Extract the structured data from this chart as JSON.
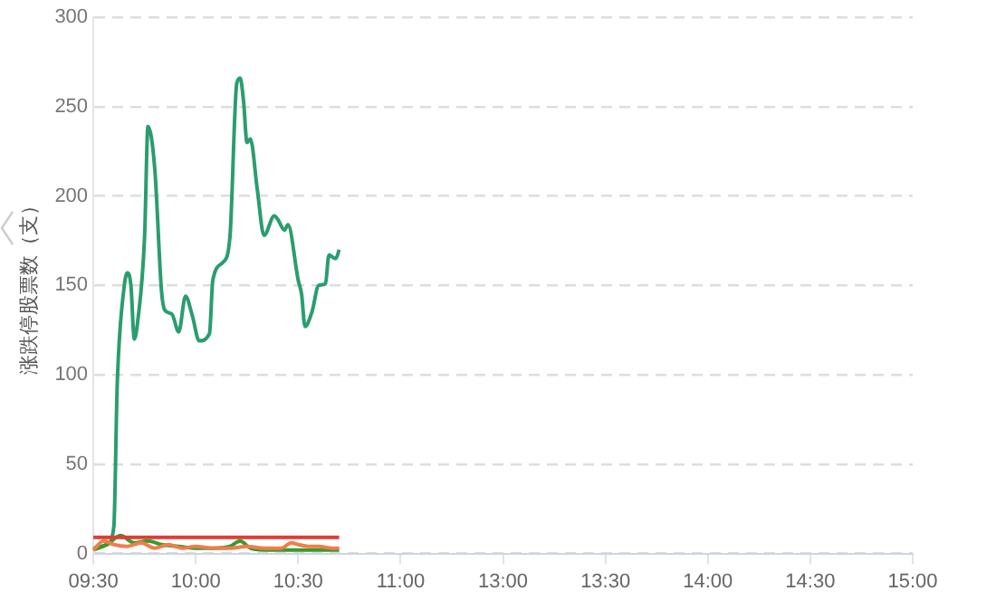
{
  "chart_data": {
    "type": "line",
    "ylabel": "涨跌停股票数（支）",
    "categories": [
      "09:30",
      null,
      null,
      null,
      null,
      null,
      null,
      null,
      null,
      null,
      null,
      null,
      null,
      null,
      null,
      null,
      null,
      null,
      null,
      null,
      null,
      null,
      null,
      null,
      null,
      null,
      null,
      null,
      null,
      null,
      "10:00",
      null,
      null,
      null,
      null,
      null,
      null,
      null,
      null,
      null,
      null,
      null,
      null,
      null,
      null,
      null,
      null,
      null,
      null,
      null,
      null,
      null,
      null,
      null,
      null,
      null,
      null,
      null,
      null,
      null,
      "10:30",
      null,
      null,
      null,
      null,
      null,
      null,
      null,
      null,
      null,
      null,
      null,
      null,
      null,
      null,
      null,
      null,
      null,
      null,
      null,
      null,
      null,
      null,
      null,
      null,
      null,
      null,
      null,
      null,
      null,
      "11:00",
      null,
      null,
      null,
      null,
      null,
      null,
      null,
      null,
      null,
      null,
      null,
      null,
      null,
      null,
      null,
      null,
      null,
      null,
      null,
      null,
      null,
      null,
      null,
      null,
      null,
      null,
      null,
      null,
      null,
      "13:00",
      null,
      null,
      null,
      null,
      null,
      null,
      null,
      null,
      null,
      null,
      null,
      null,
      null,
      null,
      null,
      null,
      null,
      null,
      null,
      null,
      null,
      null,
      null,
      null,
      null,
      null,
      null,
      null,
      null,
      "13:30",
      null,
      null,
      null,
      null,
      null,
      null,
      null,
      null,
      null,
      null,
      null,
      null,
      null,
      null,
      null,
      null,
      null,
      null,
      null,
      null,
      null,
      null,
      null,
      null,
      null,
      null,
      null,
      null,
      null,
      "14:00",
      null,
      null,
      null,
      null,
      null,
      null,
      null,
      null,
      null,
      null,
      null,
      null,
      null,
      null,
      null,
      null,
      null,
      null,
      null,
      null,
      null,
      null,
      null,
      null,
      null,
      null,
      null,
      null,
      null,
      "14:30",
      null,
      null,
      null,
      null,
      null,
      null,
      null,
      null,
      null,
      null,
      null,
      null,
      null,
      null,
      null,
      null,
      null,
      null,
      null,
      null,
      null,
      null,
      null,
      null,
      null,
      null,
      null,
      null,
      null,
      "15:00"
    ],
    "ylim": [
      0,
      300
    ],
    "yticks": [
      0,
      50,
      100,
      150,
      200,
      250,
      300
    ],
    "grid": "y",
    "legend": false,
    "marker": "none",
    "line_style": "solid",
    "series": [
      {
        "color": "#e03c31",
        "values": [
          9,
          null,
          null,
          null,
          null,
          null,
          null,
          null,
          null,
          null,
          null,
          null,
          null,
          null,
          null,
          null,
          null,
          null,
          null,
          null,
          null,
          null,
          null,
          null,
          null,
          null,
          null,
          null,
          null,
          null,
          null,
          null,
          null,
          null,
          null,
          null,
          null,
          null,
          null,
          null,
          null,
          null,
          null,
          null,
          null,
          null,
          null,
          null,
          null,
          null,
          null,
          null,
          null,
          null,
          null,
          null,
          null,
          null,
          null,
          null,
          null,
          null,
          null,
          null,
          null,
          null,
          null,
          null,
          null,
          null,
          null,
          null,
          9,
          null,
          null,
          null,
          null,
          null,
          null,
          null,
          null,
          null,
          null,
          null,
          null,
          null,
          null,
          null,
          null,
          null,
          null,
          null,
          null,
          null,
          null,
          null,
          null,
          null,
          null,
          null,
          null,
          null,
          null,
          null,
          null,
          null,
          null,
          null,
          null,
          null,
          null,
          null,
          null,
          null,
          null,
          null,
          null,
          null,
          null,
          null,
          null,
          null,
          null,
          null,
          null,
          null,
          null,
          null,
          null,
          null,
          null,
          null,
          null,
          null,
          null,
          null,
          null,
          null,
          null,
          null,
          null,
          null,
          null,
          null,
          null,
          null,
          null,
          null,
          null,
          null,
          null,
          null,
          null,
          null,
          null,
          null,
          null,
          null,
          null,
          null,
          null,
          null,
          null,
          null,
          null,
          null,
          null,
          null,
          null,
          null,
          null,
          null,
          null,
          null,
          null,
          null,
          null,
          null,
          null,
          null,
          null,
          null,
          null,
          null,
          null,
          null,
          null,
          null,
          null,
          null,
          null,
          null,
          null,
          null,
          null,
          null,
          null,
          null,
          null,
          null,
          null,
          null,
          null,
          null,
          null,
          null,
          null,
          null,
          null,
          null,
          null,
          null,
          null,
          null,
          null,
          null,
          null,
          null,
          null,
          null,
          null,
          null,
          null,
          null,
          null,
          null,
          null,
          null,
          null,
          null,
          null,
          null,
          null,
          null,
          null,
          null,
          null,
          null,
          null,
          null,
          null
        ]
      },
      {
        "color": "#f07d4a",
        "values": [
          2,
          null,
          null,
          7,
          null,
          null,
          5,
          null,
          null,
          null,
          4,
          null,
          null,
          null,
          6,
          null,
          null,
          null,
          3,
          null,
          null,
          null,
          5,
          null,
          null,
          null,
          3,
          null,
          null,
          null,
          4,
          null,
          null,
          null,
          null,
          3,
          null,
          null,
          null,
          null,
          3,
          null,
          null,
          null,
          null,
          4,
          null,
          null,
          null,
          null,
          3,
          null,
          null,
          null,
          null,
          3,
          null,
          null,
          6,
          null,
          5,
          null,
          null,
          4,
          null,
          null,
          4,
          null,
          null,
          null,
          3,
          null,
          3,
          null,
          null,
          null,
          null,
          null,
          null,
          null,
          null,
          null,
          null,
          null,
          null,
          null,
          null,
          null,
          null,
          null,
          null,
          null,
          null,
          null,
          null,
          null,
          null,
          null,
          null,
          null,
          null,
          null,
          null,
          null,
          null,
          null,
          null,
          null,
          null,
          null,
          null,
          null,
          null,
          null,
          null,
          null,
          null,
          null,
          null,
          null,
          null,
          null,
          null,
          null,
          null,
          null,
          null,
          null,
          null,
          null,
          null,
          null,
          null,
          null,
          null,
          null,
          null,
          null,
          null,
          null,
          null,
          null,
          null,
          null,
          null,
          null,
          null,
          null,
          null,
          null,
          null,
          null,
          null,
          null,
          null,
          null,
          null,
          null,
          null,
          null,
          null,
          null,
          null,
          null,
          null,
          null,
          null,
          null,
          null,
          null,
          null,
          null,
          null,
          null,
          null,
          null,
          null,
          null,
          null,
          null,
          null,
          null,
          null,
          null,
          null,
          null,
          null,
          null,
          null,
          null,
          null,
          null,
          null,
          null,
          null,
          null,
          null,
          null,
          null,
          null,
          null,
          null,
          null,
          null,
          null,
          null,
          null,
          null,
          null,
          null,
          null,
          null,
          null,
          null,
          null,
          null,
          null,
          null,
          null,
          null,
          null,
          null,
          null,
          null,
          null,
          null,
          null,
          null,
          null,
          null,
          null,
          null,
          null,
          null,
          null,
          null,
          null,
          null,
          null,
          null,
          null
        ]
      },
      {
        "color": "#3a9a2a",
        "values": [
          2,
          null,
          null,
          null,
          5,
          null,
          null,
          null,
          10,
          null,
          null,
          null,
          6,
          null,
          null,
          null,
          7,
          null,
          null,
          null,
          5,
          null,
          null,
          null,
          null,
          4,
          null,
          null,
          null,
          null,
          3,
          null,
          null,
          null,
          null,
          3,
          null,
          null,
          null,
          null,
          4,
          null,
          null,
          7,
          null,
          null,
          3,
          null,
          null,
          null,
          2,
          null,
          null,
          null,
          null,
          2,
          null,
          null,
          null,
          null,
          2,
          null,
          null,
          null,
          null,
          2,
          null,
          null,
          null,
          null,
          null,
          null,
          2,
          null,
          null,
          null,
          null,
          null,
          null,
          null,
          null,
          null,
          null,
          null,
          null,
          null,
          null,
          null,
          null,
          null,
          null,
          null,
          null,
          null,
          null,
          null,
          null,
          null,
          null,
          null,
          null,
          null,
          null,
          null,
          null,
          null,
          null,
          null,
          null,
          null,
          null,
          null,
          null,
          null,
          null,
          null,
          null,
          null,
          null,
          null,
          null,
          null,
          null,
          null,
          null,
          null,
          null,
          null,
          null,
          null,
          null,
          null,
          null,
          null,
          null,
          null,
          null,
          null,
          null,
          null,
          null,
          null,
          null,
          null,
          null,
          null,
          null,
          null,
          null,
          null,
          null,
          null,
          null,
          null,
          null,
          null,
          null,
          null,
          null,
          null,
          null,
          null,
          null,
          null,
          null,
          null,
          null,
          null,
          null,
          null,
          null,
          null,
          null,
          null,
          null,
          null,
          null,
          null,
          null,
          null,
          null,
          null,
          null,
          null,
          null,
          null,
          null,
          null,
          null,
          null,
          null,
          null,
          null,
          null,
          null,
          null,
          null,
          null,
          null,
          null,
          null,
          null,
          null,
          null,
          null,
          null,
          null,
          null,
          null,
          null,
          null,
          null,
          null,
          null,
          null,
          null,
          null,
          null,
          null,
          null,
          null,
          null,
          null,
          null,
          null,
          null,
          null,
          null,
          null,
          null,
          null,
          null,
          null,
          null,
          null,
          null,
          null,
          null,
          null,
          null,
          null
        ]
      },
      {
        "color": "#2a9d6f",
        "values": [
          3,
          null,
          null,
          null,
          5,
          null,
          15,
          95,
          null,
          149,
          157,
          150,
          120,
          130,
          null,
          177,
          239,
          null,
          215,
          null,
          146,
          136,
          null,
          134,
          null,
          124,
          null,
          144,
          null,
          133,
          null,
          119,
          null,
          null,
          123,
          153,
          null,
          null,
          163,
          null,
          177,
          null,
          263,
          266,
          253,
          230,
          232,
          null,
          204,
          null,
          178,
          null,
          null,
          189,
          187,
          null,
          181,
          184,
          null,
          null,
          153,
          145,
          127,
          null,
          135,
          null,
          150,
          null,
          151,
          167,
          null,
          165,
          170,
          null,
          null,
          null,
          null,
          null,
          null,
          null,
          null,
          null,
          null,
          null,
          null,
          null,
          null,
          null,
          null,
          null,
          null,
          null,
          null,
          null,
          null,
          null,
          null,
          null,
          null,
          null,
          null,
          null,
          null,
          null,
          null,
          null,
          null,
          null,
          null,
          null,
          null,
          null,
          null,
          null,
          null,
          null,
          null,
          null,
          null,
          null,
          null,
          null,
          null,
          null,
          null,
          null,
          null,
          null,
          null,
          null,
          null,
          null,
          null,
          null,
          null,
          null,
          null,
          null,
          null,
          null,
          null,
          null,
          null,
          null,
          null,
          null,
          null,
          null,
          null,
          null,
          null,
          null,
          null,
          null,
          null,
          null,
          null,
          null,
          null,
          null,
          null,
          null,
          null,
          null,
          null,
          null,
          null,
          null,
          null,
          null,
          null,
          null,
          null,
          null,
          null,
          null,
          null,
          null,
          null,
          null,
          null,
          null,
          null,
          null,
          null,
          null,
          null,
          null,
          null,
          null,
          null,
          null,
          null,
          null,
          null,
          null,
          null,
          null,
          null,
          null,
          null,
          null,
          null,
          null,
          null,
          null,
          null,
          null,
          null,
          null,
          null,
          null,
          null,
          null,
          null,
          null,
          null,
          null,
          null,
          null,
          null,
          null,
          null,
          null,
          null,
          null,
          null,
          null,
          null,
          null,
          null,
          null,
          null,
          null,
          null,
          null,
          null,
          null,
          null,
          null,
          null
        ]
      }
    ]
  }
}
